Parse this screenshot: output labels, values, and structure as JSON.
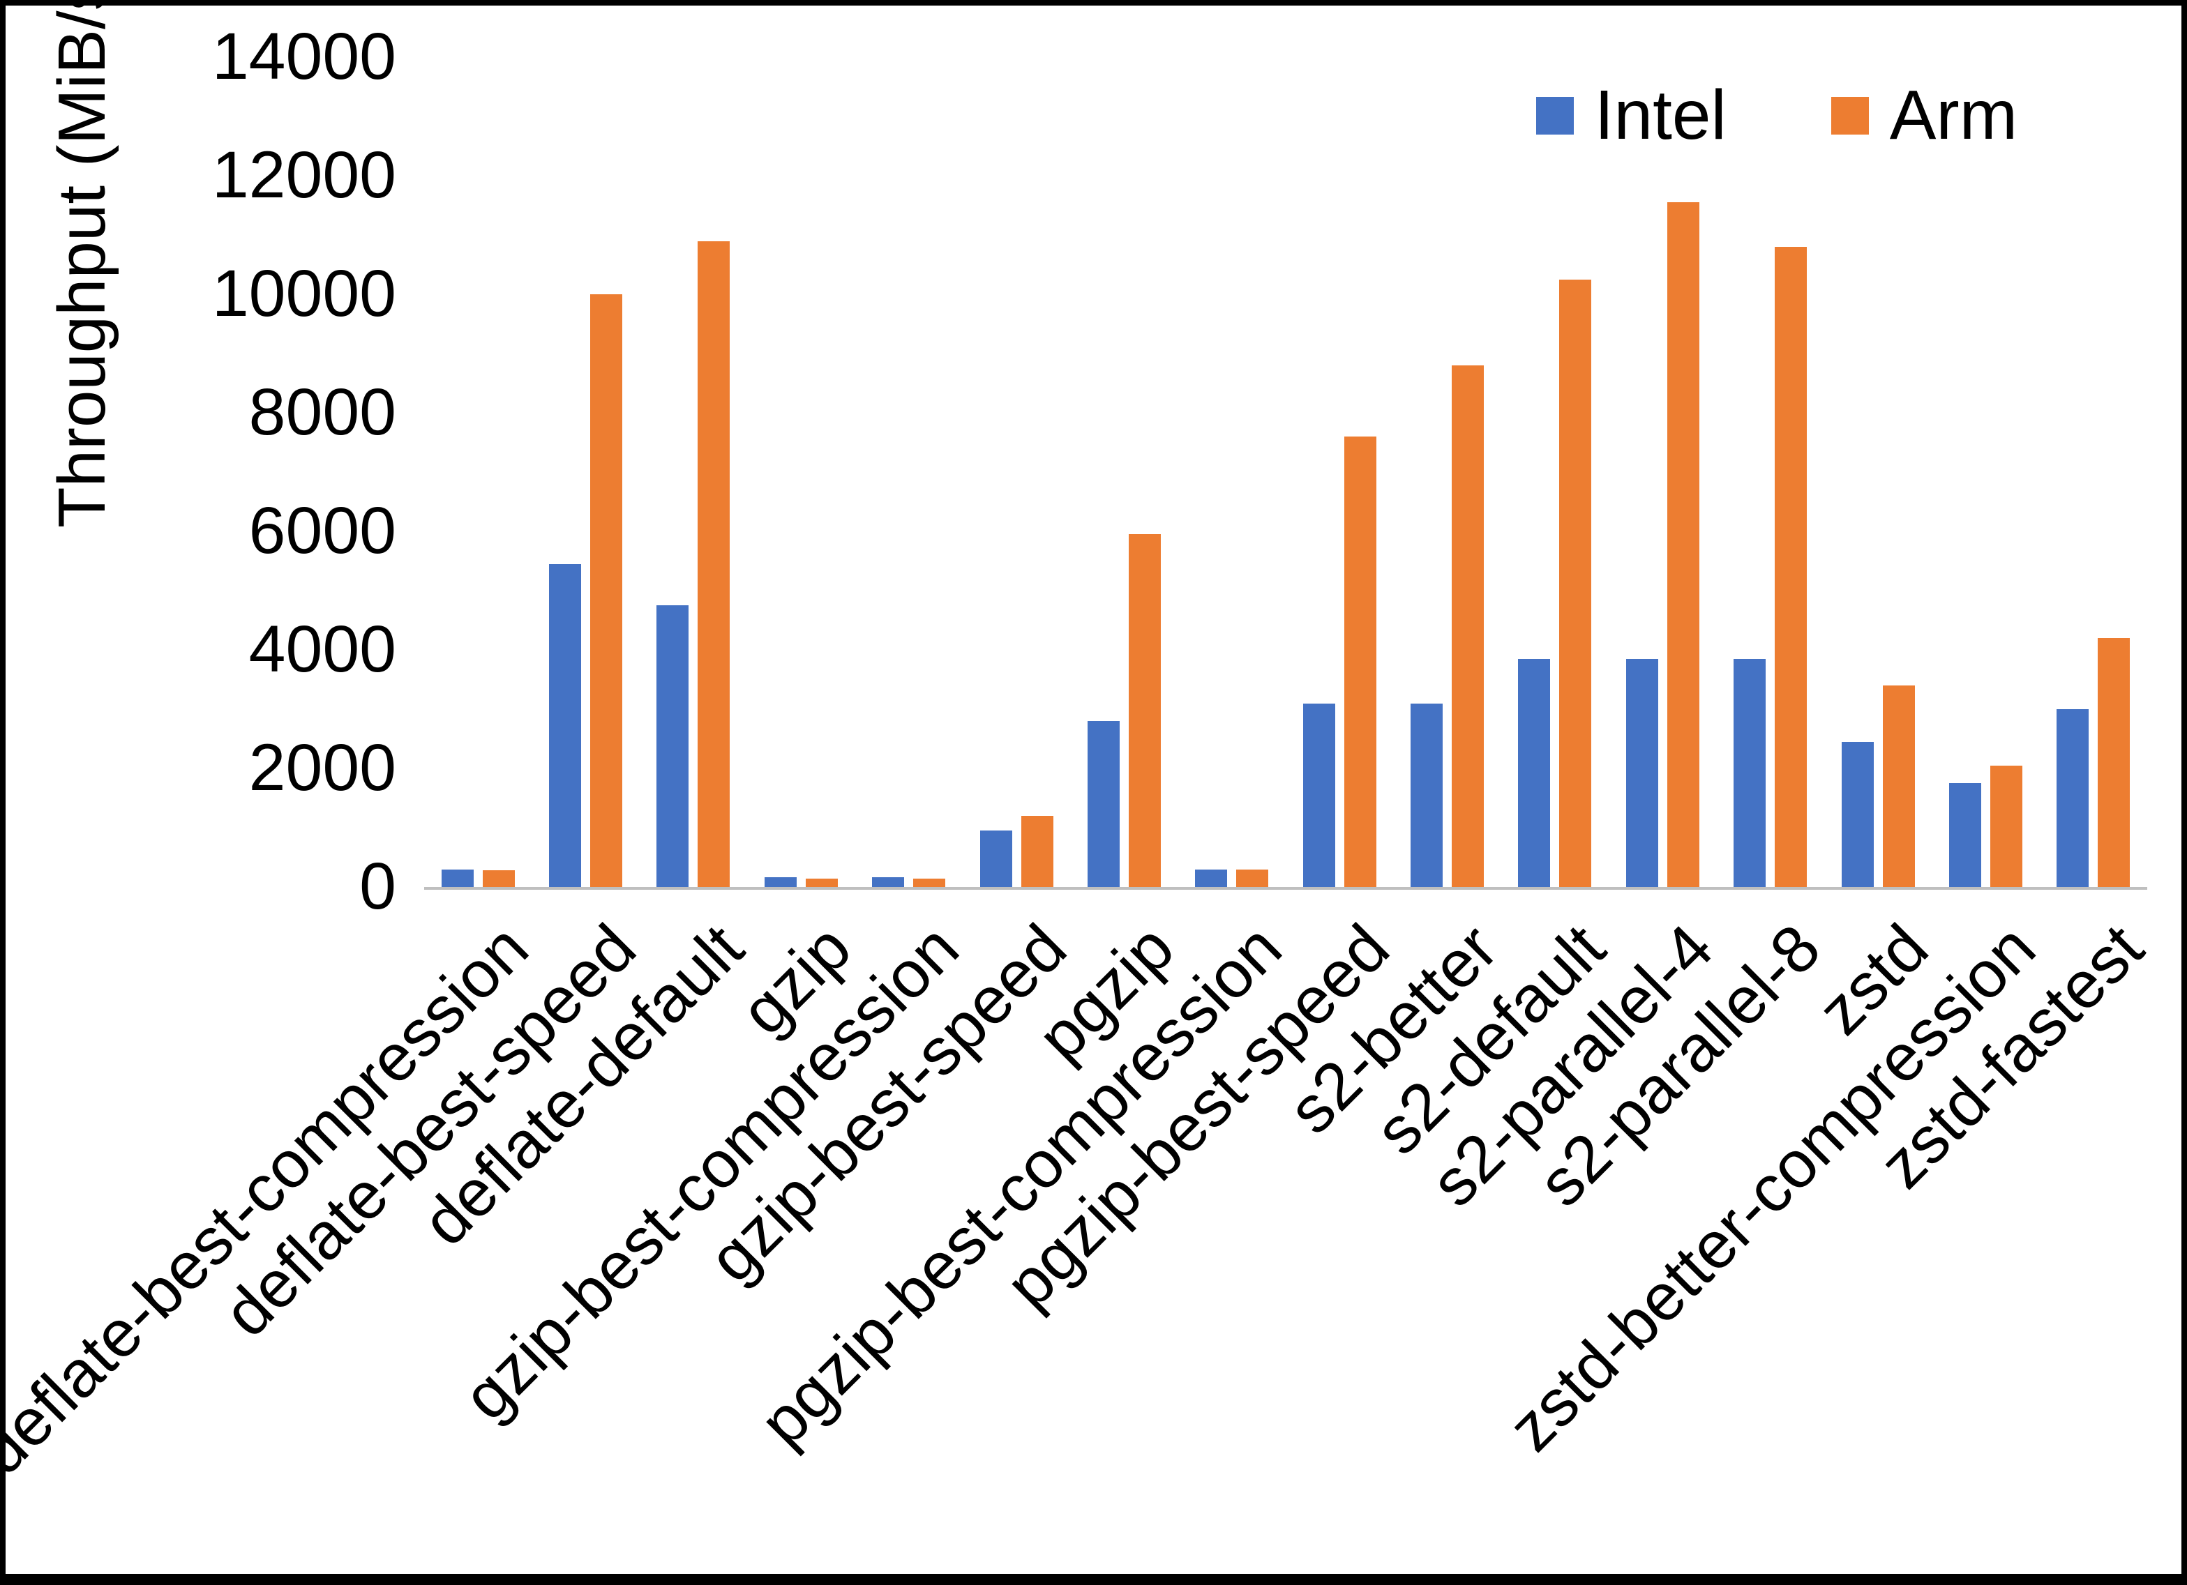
{
  "chart_data": {
    "type": "bar",
    "title": "",
    "xlabel": "",
    "ylabel": "Throughput (MiB/s)",
    "ylim": [
      0,
      14000
    ],
    "yticks": [
      0,
      2000,
      4000,
      6000,
      8000,
      10000,
      12000,
      14000
    ],
    "grid": false,
    "legend_position": "top-right",
    "categories": [
      "deflate-best-compression",
      "deflate-best-speed",
      "deflate-default",
      "gzip",
      "gzip-best-compression",
      "gzip-best-speed",
      "pgzip",
      "pgzip-best-compression",
      "pgzip-best-speed",
      "s2-better",
      "s2-default",
      "s2-parallel-4",
      "s2-parallel-8",
      "zstd",
      "zstd-better-compression",
      "zstd-fastest"
    ],
    "series": [
      {
        "name": "Intel",
        "color": "#4472C4",
        "values": [
          300,
          5450,
          4750,
          170,
          170,
          950,
          2800,
          300,
          3100,
          3100,
          3850,
          3850,
          3850,
          2450,
          1750,
          3000
        ]
      },
      {
        "name": "Arm",
        "color": "#ED7D31",
        "values": [
          280,
          10000,
          10900,
          140,
          140,
          1200,
          5950,
          300,
          7600,
          8800,
          10250,
          11550,
          10800,
          3400,
          2050,
          4200
        ]
      }
    ]
  }
}
